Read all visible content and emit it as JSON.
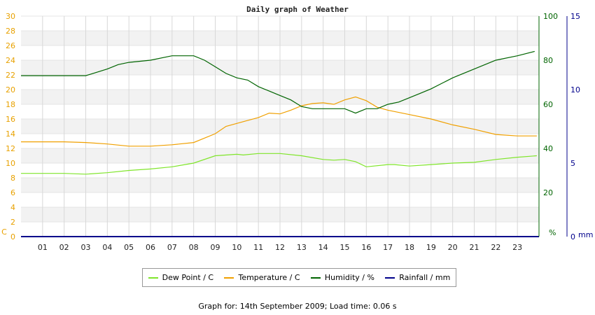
{
  "chart_data": {
    "type": "line",
    "title": "Daily graph of Weather",
    "x_ticks": [
      "01",
      "02",
      "03",
      "04",
      "05",
      "06",
      "07",
      "08",
      "09",
      "10",
      "11",
      "12",
      "13",
      "14",
      "15",
      "16",
      "17",
      "18",
      "19",
      "20",
      "21",
      "22",
      "23"
    ],
    "x_range": [
      0,
      24
    ],
    "axes": {
      "left": {
        "label": "C",
        "ticks": [
          0,
          2,
          4,
          6,
          8,
          10,
          12,
          14,
          16,
          18,
          20,
          22,
          24,
          26,
          28,
          30
        ],
        "range": [
          0,
          30
        ],
        "color": "#e8a100"
      },
      "right1": {
        "label": "%",
        "ticks": [
          0,
          20,
          40,
          60,
          80,
          100
        ],
        "range": [
          0,
          100
        ],
        "color": "#006400"
      },
      "right2": {
        "label": "mm",
        "ticks": [
          0,
          5,
          10,
          15
        ],
        "range": [
          0,
          15
        ],
        "color": "#00008b"
      }
    },
    "grid": true,
    "series": [
      {
        "name": "Dew Point / C",
        "axis": "left",
        "color": "#7fe52a",
        "x": [
          0,
          1,
          2,
          3,
          4,
          5,
          6,
          7,
          8,
          9,
          10,
          10.3,
          11,
          12,
          13,
          14,
          14.5,
          15,
          15.5,
          16,
          17,
          17.3,
          18,
          19,
          20,
          21,
          22,
          23,
          23.9
        ],
        "y": [
          8.6,
          8.6,
          8.6,
          8.5,
          8.7,
          9.0,
          9.2,
          9.5,
          10.0,
          11.0,
          11.2,
          11.1,
          11.3,
          11.3,
          11.0,
          10.5,
          10.4,
          10.5,
          10.2,
          9.5,
          9.8,
          9.8,
          9.6,
          9.8,
          10.0,
          10.1,
          10.5,
          10.8,
          11.0
        ]
      },
      {
        "name": "Temperature / C",
        "axis": "left",
        "color": "#f0a000",
        "x": [
          0,
          1,
          2,
          3,
          4,
          5,
          6,
          7,
          8,
          9,
          9.5,
          10,
          10.5,
          11,
          11.5,
          12,
          12.5,
          13,
          13.5,
          14,
          14.5,
          15,
          15.5,
          16,
          16.5,
          17,
          17.5,
          18,
          19,
          20,
          21,
          22,
          23,
          23.9
        ],
        "y": [
          12.9,
          12.9,
          12.9,
          12.8,
          12.6,
          12.3,
          12.3,
          12.5,
          12.8,
          14.0,
          15.0,
          15.4,
          15.8,
          16.2,
          16.8,
          16.7,
          17.2,
          17.8,
          18.1,
          18.2,
          18.0,
          18.6,
          19.0,
          18.5,
          17.6,
          17.2,
          16.9,
          16.6,
          16.0,
          15.2,
          14.6,
          13.9,
          13.7,
          13.7
        ]
      },
      {
        "name": "Humidity / %",
        "axis": "right1",
        "color": "#006400",
        "x": [
          0,
          1,
          2,
          3,
          4,
          4.5,
          5,
          6,
          7,
          8,
          8.5,
          9,
          9.5,
          10,
          10.5,
          11,
          11.5,
          12,
          12.5,
          13,
          13.5,
          14,
          14.5,
          15,
          15.5,
          16,
          16.5,
          17,
          17.5,
          18,
          18.5,
          19,
          20,
          21,
          22,
          23,
          23.8
        ],
        "y": [
          73,
          73,
          73,
          73,
          76,
          78,
          79,
          80,
          82,
          82,
          80,
          77,
          74,
          72,
          71,
          68,
          66,
          64,
          62,
          59,
          58,
          58,
          58,
          58,
          56,
          58,
          58,
          60,
          61,
          63,
          65,
          67,
          72,
          76,
          80,
          82,
          84
        ]
      },
      {
        "name": "Rainfall / mm",
        "axis": "right2",
        "color": "#00008b",
        "x": [
          0,
          24
        ],
        "y": [
          0,
          0
        ]
      }
    ]
  },
  "legend": {
    "dew_point": "Dew Point / C",
    "temperature": "Temperature / C",
    "humidity": "Humidity / %",
    "rainfall": "Rainfall / mm"
  },
  "footer": "Graph for: 14th September 2009; Load time: 0.06 s"
}
